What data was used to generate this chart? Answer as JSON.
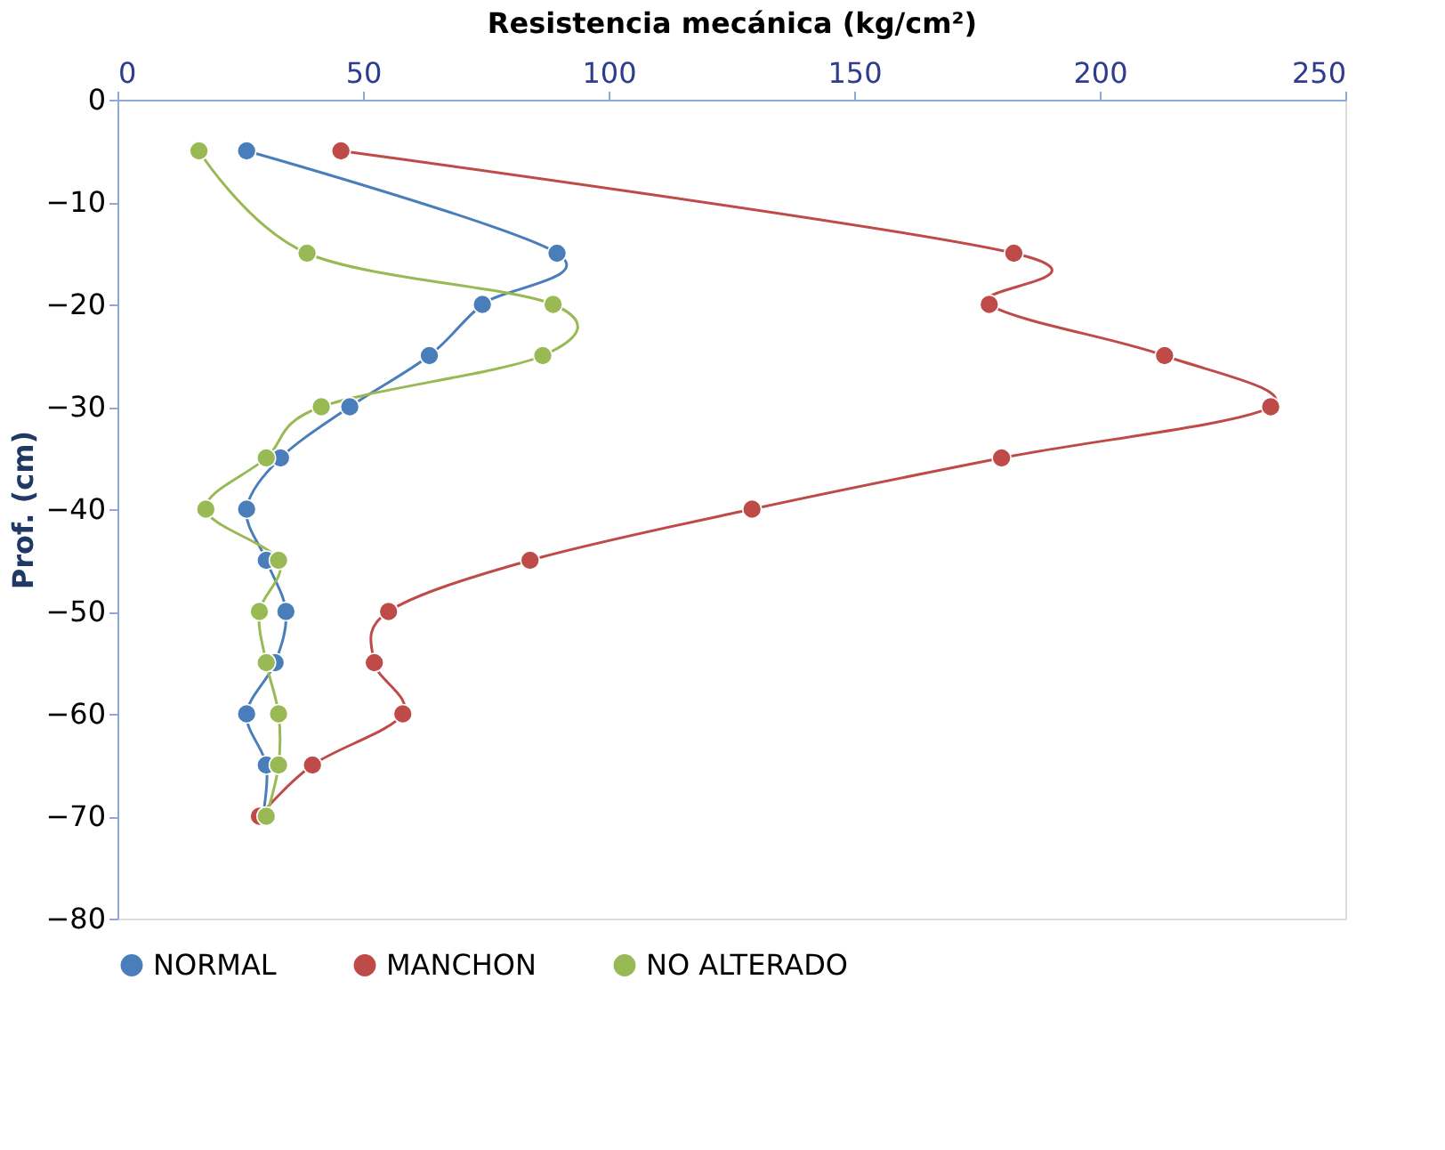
{
  "chart_data": {
    "type": "line",
    "xlabel": "Resistencia mecánica (kg/cm²)",
    "ylabel": "Prof. (cm)",
    "xlim": [
      0,
      250
    ],
    "xticks": [
      0,
      50,
      100,
      150,
      200,
      250
    ],
    "ylim": [
      -80,
      0
    ],
    "yticks": [
      -80,
      -70,
      -60,
      -50,
      -40,
      -30,
      -20,
      -10,
      0
    ],
    "grid": false,
    "legend": "bottom",
    "marker": "circle",
    "line_style": "solid",
    "series": [
      {
        "name": "NORMAL",
        "color": "#4a7ebb",
        "x": [
          26.3,
          89.5,
          74.3,
          63.5,
          47.3,
          33.2,
          26.3,
          30.3,
          34.3,
          32.1,
          26.3,
          30.3,
          29.6
        ],
        "values": [
          -5,
          -15,
          -20,
          -25,
          -30,
          -35,
          -40,
          -45,
          -50,
          -55,
          -60,
          -65,
          -70
        ]
      },
      {
        "name": "MANCHON",
        "color": "#be4b48",
        "x": [
          45.5,
          182.5,
          177.5,
          213.2,
          234.8,
          180,
          129.2,
          84,
          55.2,
          52.3,
          58.1,
          39.7,
          28.9
        ],
        "values": [
          -5,
          -15,
          -20,
          -25,
          -30,
          -35,
          -40,
          -45,
          -50,
          -55,
          -60,
          -65,
          -70
        ]
      },
      {
        "name": "NO ALTERADO",
        "color": "#98b954",
        "x": [
          16.6,
          38.6,
          88.7,
          86.6,
          41.5,
          30.3,
          18,
          32.8,
          28.9,
          30.3,
          32.8,
          32.8,
          30.3
        ],
        "values": [
          -5,
          -15,
          -20,
          -25,
          -30,
          -35,
          -40,
          -45,
          -50,
          -55,
          -60,
          -65,
          -70
        ]
      }
    ]
  }
}
